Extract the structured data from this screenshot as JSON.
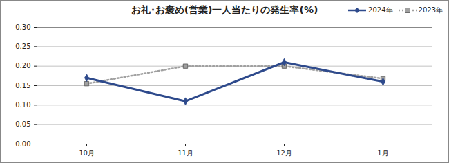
{
  "chart_data": {
    "type": "line",
    "title": "お礼･お褒め(営業)一人当たりの発生率(%)",
    "categories": [
      "10月",
      "11月",
      "12月",
      "1月"
    ],
    "series": [
      {
        "name": "2024年",
        "color": "#2e4a8c",
        "values": [
          0.17,
          0.11,
          0.21,
          0.16
        ],
        "marker": "diamond",
        "line_style": "solid"
      },
      {
        "name": "2023年",
        "color": "#a0a0a0",
        "values": [
          0.155,
          0.2,
          0.2,
          0.168
        ],
        "marker": "square",
        "line_style": "dotted"
      }
    ],
    "ylim": [
      0,
      0.3
    ],
    "yticks": [
      {
        "value": 0,
        "label": "0.00"
      },
      {
        "value": 0.05,
        "label": "0.05"
      },
      {
        "value": 0.1,
        "label": "0.10"
      },
      {
        "value": 0.15,
        "label": "0.15"
      },
      {
        "value": 0.2,
        "label": "0.20"
      },
      {
        "value": 0.25,
        "label": "0.25"
      },
      {
        "value": 0.3,
        "label": "0.30"
      }
    ],
    "grid": true,
    "legend": "top-right"
  }
}
